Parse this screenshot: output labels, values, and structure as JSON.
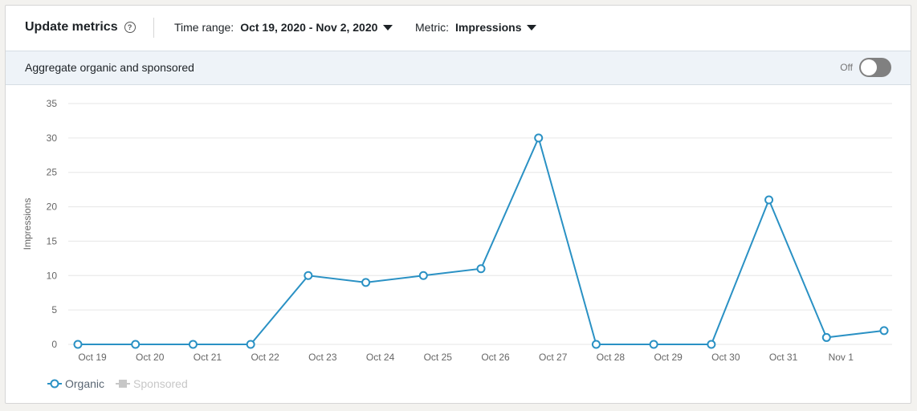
{
  "header": {
    "title": "Update metrics",
    "help_icon": "help-circle-icon",
    "time_range_label": "Time range:",
    "time_range_value": "Oct 19, 2020 - Nov 2, 2020",
    "metric_label": "Metric:",
    "metric_value": "Impressions"
  },
  "aggregate": {
    "label": "Aggregate organic and sponsored",
    "toggle_state": "Off"
  },
  "colors": {
    "organic": "#2a91c4",
    "sponsored": "#c7c7c7",
    "grid": "#e6e6e6"
  },
  "legend": {
    "organic": "Organic",
    "sponsored": "Sponsored"
  },
  "chart_data": {
    "type": "line",
    "ylabel": "Impressions",
    "xlabel": "",
    "ylim": [
      0,
      35
    ],
    "yticks": [
      0,
      5,
      10,
      15,
      20,
      25,
      30,
      35
    ],
    "x_tick_labels": [
      "Oct 19",
      "Oct 20",
      "Oct 21",
      "Oct 22",
      "Oct 23",
      "Oct 24",
      "Oct 25",
      "Oct 26",
      "Oct 27",
      "Oct 28",
      "Oct 29",
      "Oct 30",
      "Oct 31",
      "Nov 1"
    ],
    "grid": true,
    "legend_position": "bottom-left",
    "series": [
      {
        "name": "Organic",
        "values": [
          0,
          0,
          0,
          0,
          10,
          9,
          10,
          11,
          30,
          0,
          0,
          0,
          21,
          1,
          2
        ]
      }
    ]
  }
}
